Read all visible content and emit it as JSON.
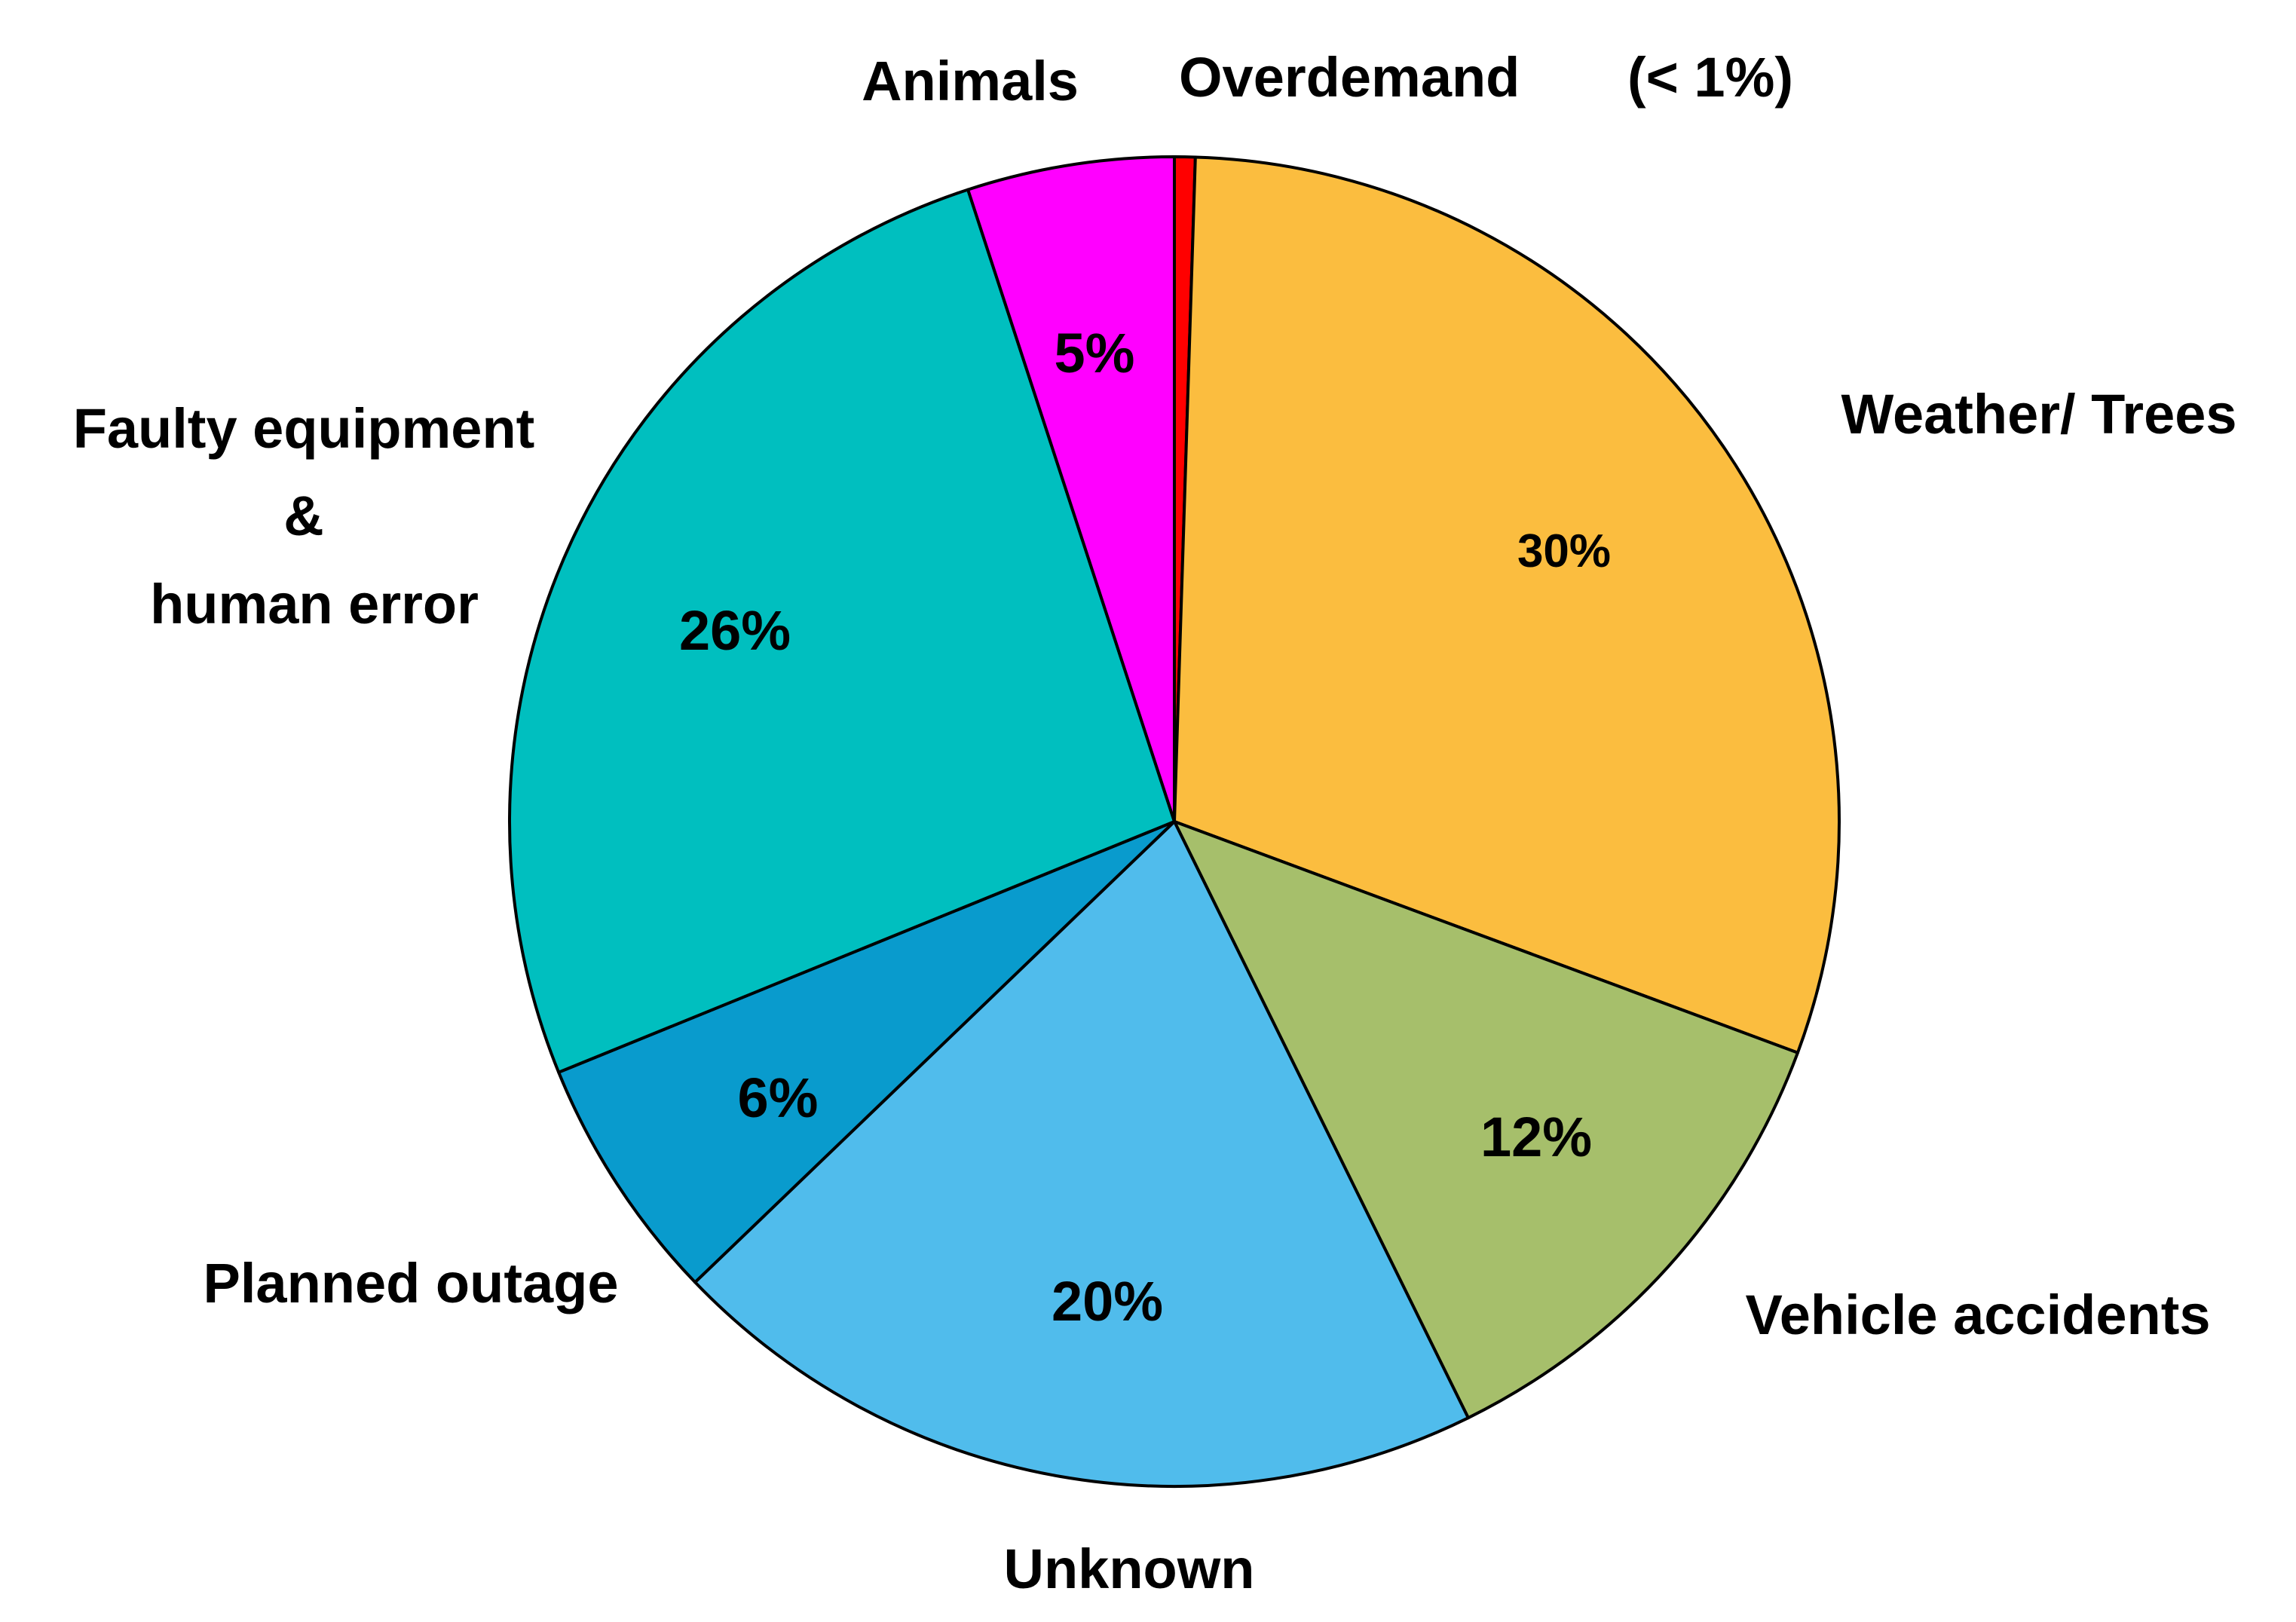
{
  "chart_data": {
    "type": "pie",
    "title": "",
    "slices": [
      {
        "label": "Overdemand",
        "value": 0.5,
        "display": "(< 1%)",
        "color": "#ff0000"
      },
      {
        "label": "Weather/ Trees",
        "value": 30,
        "display": "30%",
        "color": "#fbbd3f"
      },
      {
        "label": "Vehicle accidents",
        "value": 12,
        "display": "12%",
        "color": "#a6bf6b"
      },
      {
        "label": "Unknown",
        "value": 20,
        "display": "20%",
        "color": "#50bcec"
      },
      {
        "label": "Planned outage",
        "value": 6,
        "display": "6%",
        "color": "#099bcd"
      },
      {
        "label": "Faulty equipment & human error",
        "value": 26,
        "display": "26%",
        "color": "#00bfbf"
      },
      {
        "label": "Animals",
        "value": 5,
        "display": "5%",
        "color": "#ff00ff"
      }
    ],
    "legend": "none"
  },
  "labels": {
    "overdemand_name": "Overdemand",
    "overdemand_pct": "(< 1%)",
    "animals": "Animals",
    "weather": "Weather/ Trees",
    "vehicle": "Vehicle accidents",
    "unknown": "Unknown",
    "planned": "Planned outage",
    "faulty_line1": "Faulty equipment",
    "faulty_line2": "&",
    "faulty_line3": "human error",
    "pct_weather": "30%",
    "pct_vehicle": "12%",
    "pct_unknown": "20%",
    "pct_planned": "6%",
    "pct_faulty": "26%",
    "pct_animals": "5%"
  }
}
